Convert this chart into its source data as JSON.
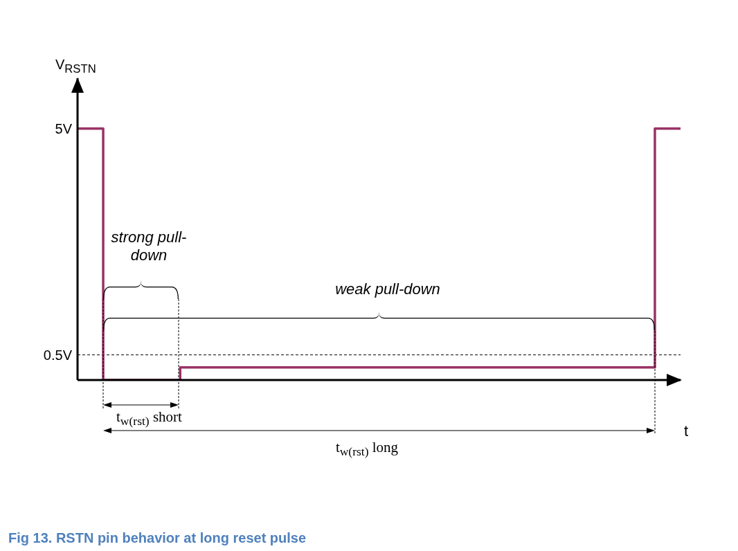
{
  "chart_data": {
    "type": "step",
    "title": "Fig 13. RSTN pin behavior at long reset pulse",
    "ylabel": "V$_{RSTN}$",
    "xlabel": "t",
    "categories": [
      null,
      null,
      null,
      null,
      null,
      null,
      null,
      null,
      null,
      null,
      null,
      null,
      null,
      null,
      null,
      null,
      null,
      null,
      null,
      null,
      null,
      null,
      null,
      null,
      null,
      null,
      null,
      null,
      null,
      null,
      null,
      null,
      null,
      null,
      null,
      null,
      null,
      null,
      null,
      null,
      null,
      null,
      null,
      null,
      null,
      null,
      null,
      null,
      null,
      null,
      null,
      null,
      null,
      null,
      null,
      null,
      null,
      null,
      null,
      null,
      null,
      null,
      null,
      null,
      null,
      null,
      null,
      null,
      null,
      null,
      null,
      null,
      null,
      null,
      null,
      null,
      null,
      null,
      null,
      null,
      null,
      null,
      null,
      null,
      null,
      null,
      null,
      null,
      null,
      null,
      null,
      null,
      null,
      null,
      null
    ],
    "values": [
      5,
      5,
      5,
      5,
      0,
      0,
      0,
      0,
      0,
      0,
      0,
      0,
      0,
      0,
      0,
      0,
      0.25,
      0.25,
      0.25,
      0.25,
      0.25,
      0.25,
      0.25,
      0.25,
      0.25,
      0.25,
      0.25,
      0.25,
      0.25,
      0.25,
      0.25,
      0.25,
      0.25,
      0.25,
      0.25,
      0.25,
      0.25,
      0.25,
      0.25,
      0.25,
      0.25,
      0.25,
      0.25,
      0.25,
      0.25,
      0.25,
      0.25,
      0.25,
      0.25,
      0.25,
      0.25,
      0.25,
      0.25,
      0.25,
      0.25,
      0.25,
      0.25,
      0.25,
      0.25,
      0.25,
      0.25,
      0.25,
      0.25,
      0.25,
      0.25,
      0.25,
      0.25,
      0.25,
      0.25,
      0.25,
      0.25,
      0.25,
      0.25,
      0.25,
      0.25,
      0.25,
      0.25,
      0.25,
      0.25,
      0.25,
      0.25,
      0.25,
      0.25,
      0.25,
      0.25,
      0.25,
      0.25,
      0.25,
      0.25,
      0.25,
      5,
      5,
      5,
      5,
      5
    ],
    "color": "#993366",
    "ylim": [
      0,
      6
    ],
    "yticks": [
      {
        "value": 5,
        "label": "5V"
      },
      {
        "value": 0.5,
        "label": "0.5V"
      }
    ],
    "tick_labels": "y",
    "ref_lines": [
      {
        "axis": "y",
        "value": 0.5,
        "line_style": "dashed",
        "color": "#000000"
      }
    ],
    "annotations": [
      "strong pull-down",
      "weak pull-down",
      "t$_{w(rst)}$ short",
      "t$_{w(rst)}$ long"
    ]
  }
}
